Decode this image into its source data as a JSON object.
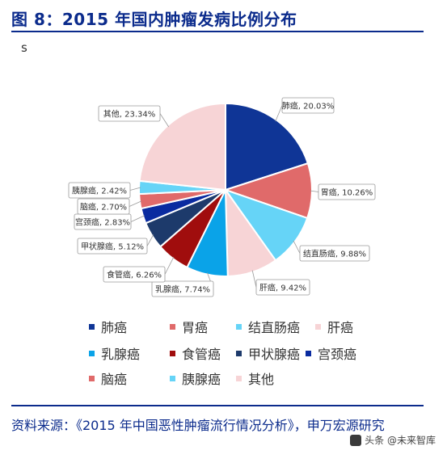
{
  "figure": {
    "title": "图 8：2015 年国内肿瘤发病比例分布",
    "subtitle": "s",
    "source": "资料来源：《2015 年中国恶性肿瘤流行情况分析》，申万宏源研究",
    "watermark": "头条 @未来智库"
  },
  "colors": {
    "title_blue": "#0b2b8c"
  },
  "chart_data": {
    "type": "pie",
    "start": "12 o'clock, clockwise",
    "legend_position": "bottom",
    "slices": [
      {
        "name": "肺癌",
        "value": 20.03,
        "label": "肺癌, 20.03%",
        "color": "#0f3596"
      },
      {
        "name": "胃癌",
        "value": 10.26,
        "label": "胃癌, 10.26%",
        "color": "#e06a6a"
      },
      {
        "name": "结直肠癌",
        "value": 9.88,
        "label": "结直肠癌, 9.88%",
        "color": "#66d4f7"
      },
      {
        "name": "肝癌",
        "value": 9.42,
        "label": "肝癌, 9.42%",
        "color": "#f7d4d6"
      },
      {
        "name": "乳腺癌",
        "value": 7.74,
        "label": "乳腺癌, 7.74%",
        "color": "#0aa3e8"
      },
      {
        "name": "食管癌",
        "value": 6.26,
        "label": "食管癌, 6.26%",
        "color": "#a00d0d"
      },
      {
        "name": "甲状腺癌",
        "value": 5.12,
        "label": "甲状腺癌, 5.12%",
        "color": "#1d3a6b"
      },
      {
        "name": "宫颈癌",
        "value": 2.83,
        "label": "宫颈癌, 2.83%",
        "color": "#0a2ba0"
      },
      {
        "name": "脑癌",
        "value": 2.7,
        "label": "脑癌, 2.70%",
        "color": "#e06a6a"
      },
      {
        "name": "胰腺癌",
        "value": 2.42,
        "label": "胰腺癌, 2.42%",
        "color": "#66d4f7"
      },
      {
        "name": "其他",
        "value": 23.34,
        "label": "其他, 23.34%",
        "color": "#f7d4d6"
      }
    ]
  }
}
